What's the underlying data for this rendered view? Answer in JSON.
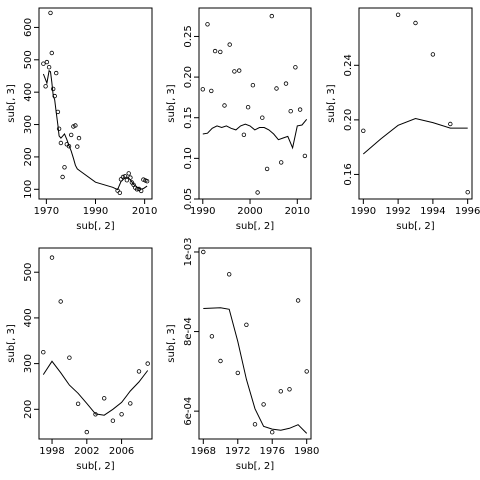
{
  "chart_data": [
    {
      "type": "scatter",
      "xlabel": "sub[, 2]",
      "ylabel": "sub[, 3]",
      "xlim": [
        1967,
        2013
      ],
      "ylim": [
        70,
        660
      ],
      "xticks": [
        1970,
        1990,
        2010
      ],
      "yticks": [
        100,
        200,
        300,
        400,
        500,
        600
      ],
      "y_tick_labels_rotated": true,
      "points": [
        {
          "x": 1968.8,
          "y": 488
        },
        {
          "x": 1969.7,
          "y": 418
        },
        {
          "x": 1970.2,
          "y": 493
        },
        {
          "x": 1971.1,
          "y": 477
        },
        {
          "x": 1971.7,
          "y": 645
        },
        {
          "x": 1972.2,
          "y": 521
        },
        {
          "x": 1972.8,
          "y": 410
        },
        {
          "x": 1973.4,
          "y": 388
        },
        {
          "x": 1974.0,
          "y": 459
        },
        {
          "x": 1974.7,
          "y": 339
        },
        {
          "x": 1975.2,
          "y": 287
        },
        {
          "x": 1975.9,
          "y": 243
        },
        {
          "x": 1976.6,
          "y": 138
        },
        {
          "x": 1977.4,
          "y": 168
        },
        {
          "x": 1978.3,
          "y": 239
        },
        {
          "x": 1979.2,
          "y": 233
        },
        {
          "x": 1980.1,
          "y": 268
        },
        {
          "x": 1981.0,
          "y": 294
        },
        {
          "x": 1981.8,
          "y": 297
        },
        {
          "x": 1982.6,
          "y": 232
        },
        {
          "x": 1983.3,
          "y": 258
        },
        {
          "x": 1999.0,
          "y": 96
        },
        {
          "x": 1999.9,
          "y": 89
        },
        {
          "x": 2000.4,
          "y": 131
        },
        {
          "x": 2001.2,
          "y": 138
        },
        {
          "x": 2002.0,
          "y": 140
        },
        {
          "x": 2002.8,
          "y": 128
        },
        {
          "x": 2003.5,
          "y": 149
        },
        {
          "x": 2004.2,
          "y": 136
        },
        {
          "x": 2004.8,
          "y": 121
        },
        {
          "x": 2005.5,
          "y": 114
        },
        {
          "x": 2006.2,
          "y": 105
        },
        {
          "x": 2006.9,
          "y": 100
        },
        {
          "x": 2007.7,
          "y": 101
        },
        {
          "x": 2008.6,
          "y": 95
        },
        {
          "x": 2009.5,
          "y": 130
        },
        {
          "x": 2010.3,
          "y": 127
        },
        {
          "x": 2011.0,
          "y": 125
        }
      ],
      "line": [
        {
          "x": 1968.8,
          "y": 456
        },
        {
          "x": 1970.2,
          "y": 428
        },
        {
          "x": 1971.1,
          "y": 466
        },
        {
          "x": 1971.7,
          "y": 463
        },
        {
          "x": 1972.2,
          "y": 431
        },
        {
          "x": 1972.8,
          "y": 390
        },
        {
          "x": 1973.4,
          "y": 376
        },
        {
          "x": 1974.0,
          "y": 338
        },
        {
          "x": 1974.7,
          "y": 298
        },
        {
          "x": 1975.2,
          "y": 265
        },
        {
          "x": 1975.9,
          "y": 258
        },
        {
          "x": 1976.6,
          "y": 264
        },
        {
          "x": 1977.4,
          "y": 271
        },
        {
          "x": 1978.3,
          "y": 254
        },
        {
          "x": 1979.2,
          "y": 235
        },
        {
          "x": 1980.1,
          "y": 218
        },
        {
          "x": 1981.0,
          "y": 196
        },
        {
          "x": 1981.8,
          "y": 174
        },
        {
          "x": 1982.6,
          "y": 163
        },
        {
          "x": 1984.0,
          "y": 155
        },
        {
          "x": 1990.0,
          "y": 122
        },
        {
          "x": 1997.0,
          "y": 106
        },
        {
          "x": 1999.0,
          "y": 99
        },
        {
          "x": 2000.4,
          "y": 124
        },
        {
          "x": 2001.5,
          "y": 132
        },
        {
          "x": 2002.8,
          "y": 138
        },
        {
          "x": 2003.5,
          "y": 135
        },
        {
          "x": 2004.5,
          "y": 126
        },
        {
          "x": 2005.5,
          "y": 115
        },
        {
          "x": 2006.5,
          "y": 109
        },
        {
          "x": 2007.5,
          "y": 104
        },
        {
          "x": 2008.5,
          "y": 101
        },
        {
          "x": 2009.5,
          "y": 102
        },
        {
          "x": 2011.0,
          "y": 110
        }
      ]
    },
    {
      "type": "scatter",
      "xlabel": "sub[, 2]",
      "ylabel": "sub[, 3]",
      "xlim": [
        1989.2,
        2012.9
      ],
      "ylim": [
        0.05,
        0.285
      ],
      "xticks": [
        1990,
        2000,
        2010
      ],
      "yticks": [
        0.05,
        0.1,
        0.15,
        0.2,
        0.25
      ],
      "ytick_labels": [
        "0.05",
        "0.10",
        "0.15",
        "0.20",
        "0.25"
      ],
      "y_tick_labels_rotated": true,
      "points": [
        {
          "x": 1990.0,
          "y": 0.185
        },
        {
          "x": 1991.0,
          "y": 0.265
        },
        {
          "x": 1991.8,
          "y": 0.183
        },
        {
          "x": 1992.6,
          "y": 0.232
        },
        {
          "x": 1993.7,
          "y": 0.231
        },
        {
          "x": 1994.6,
          "y": 0.165
        },
        {
          "x": 1995.7,
          "y": 0.24
        },
        {
          "x": 1996.7,
          "y": 0.207
        },
        {
          "x": 1997.7,
          "y": 0.208
        },
        {
          "x": 1998.7,
          "y": 0.129
        },
        {
          "x": 1999.6,
          "y": 0.163
        },
        {
          "x": 2000.6,
          "y": 0.19
        },
        {
          "x": 2001.6,
          "y": 0.058
        },
        {
          "x": 2002.6,
          "y": 0.15
        },
        {
          "x": 2003.6,
          "y": 0.087
        },
        {
          "x": 2004.6,
          "y": 0.275
        },
        {
          "x": 2005.6,
          "y": 0.186
        },
        {
          "x": 2006.6,
          "y": 0.095
        },
        {
          "x": 2007.6,
          "y": 0.192
        },
        {
          "x": 2008.6,
          "y": 0.158
        },
        {
          "x": 2009.6,
          "y": 0.212
        },
        {
          "x": 2010.6,
          "y": 0.16
        },
        {
          "x": 2011.6,
          "y": 0.103
        }
      ],
      "line": [
        {
          "x": 1990.0,
          "y": 0.13
        },
        {
          "x": 1991.0,
          "y": 0.131
        },
        {
          "x": 1992.0,
          "y": 0.137
        },
        {
          "x": 1993.0,
          "y": 0.14
        },
        {
          "x": 1994.0,
          "y": 0.138
        },
        {
          "x": 1995.0,
          "y": 0.14
        },
        {
          "x": 1996.0,
          "y": 0.137
        },
        {
          "x": 1997.0,
          "y": 0.135
        },
        {
          "x": 1998.0,
          "y": 0.14
        },
        {
          "x": 1999.0,
          "y": 0.142
        },
        {
          "x": 2000.0,
          "y": 0.14
        },
        {
          "x": 2001.0,
          "y": 0.135
        },
        {
          "x": 2002.0,
          "y": 0.138
        },
        {
          "x": 2003.0,
          "y": 0.138
        },
        {
          "x": 2004.0,
          "y": 0.135
        },
        {
          "x": 2005.0,
          "y": 0.13
        },
        {
          "x": 2006.0,
          "y": 0.123
        },
        {
          "x": 2007.0,
          "y": 0.125
        },
        {
          "x": 2008.0,
          "y": 0.127
        },
        {
          "x": 2009.0,
          "y": 0.113
        },
        {
          "x": 2010.0,
          "y": 0.14
        },
        {
          "x": 2011.0,
          "y": 0.141
        },
        {
          "x": 2012.0,
          "y": 0.148
        }
      ]
    },
    {
      "type": "scatter",
      "xlabel": "sub[, 2]",
      "ylabel": "sub[, 3]",
      "xlim": [
        1989.75,
        1996.25
      ],
      "ylim": [
        0.142,
        0.282
      ],
      "xticks": [
        1990,
        1992,
        1994,
        1996
      ],
      "yticks": [
        0.16,
        0.2,
        0.24
      ],
      "ytick_labels": [
        "0.16",
        "0.20",
        "0.24"
      ],
      "y_tick_labels_rotated": true,
      "points": [
        {
          "x": 1990.0,
          "y": 0.192
        },
        {
          "x": 1992.0,
          "y": 0.277
        },
        {
          "x": 1993.0,
          "y": 0.271
        },
        {
          "x": 1994.0,
          "y": 0.248
        },
        {
          "x": 1995.0,
          "y": 0.197
        },
        {
          "x": 1996.0,
          "y": 0.147
        }
      ],
      "line": [
        {
          "x": 1990.0,
          "y": 0.175
        },
        {
          "x": 1991.0,
          "y": 0.186
        },
        {
          "x": 1992.0,
          "y": 0.196
        },
        {
          "x": 1993.0,
          "y": 0.201
        },
        {
          "x": 1994.0,
          "y": 0.198
        },
        {
          "x": 1995.0,
          "y": 0.194
        },
        {
          "x": 1996.0,
          "y": 0.194
        }
      ]
    },
    {
      "type": "scatter",
      "xlabel": "sub[, 2]",
      "ylabel": "sub[, 3]",
      "xlim": [
        1996.5,
        2009.5
      ],
      "ylim": [
        135,
        553
      ],
      "xticks": [
        1998,
        2002,
        2006
      ],
      "yticks": [
        200,
        300,
        400,
        500
      ],
      "y_tick_labels_rotated": true,
      "points": [
        {
          "x": 1997.0,
          "y": 325
        },
        {
          "x": 1998.0,
          "y": 532
        },
        {
          "x": 1999.0,
          "y": 436
        },
        {
          "x": 2000.0,
          "y": 313
        },
        {
          "x": 2001.0,
          "y": 212
        },
        {
          "x": 2002.0,
          "y": 150
        },
        {
          "x": 2003.0,
          "y": 189
        },
        {
          "x": 2004.0,
          "y": 224
        },
        {
          "x": 2005.0,
          "y": 175
        },
        {
          "x": 2006.0,
          "y": 189
        },
        {
          "x": 2007.0,
          "y": 213
        },
        {
          "x": 2008.0,
          "y": 283
        },
        {
          "x": 2009.0,
          "y": 300
        }
      ],
      "line": [
        {
          "x": 1997.0,
          "y": 276
        },
        {
          "x": 1998.0,
          "y": 305
        },
        {
          "x": 1999.0,
          "y": 280
        },
        {
          "x": 2000.0,
          "y": 253
        },
        {
          "x": 2001.0,
          "y": 235
        },
        {
          "x": 2002.0,
          "y": 213
        },
        {
          "x": 2003.0,
          "y": 190
        },
        {
          "x": 2004.0,
          "y": 187
        },
        {
          "x": 2005.0,
          "y": 200
        },
        {
          "x": 2006.0,
          "y": 215
        },
        {
          "x": 2007.0,
          "y": 240
        },
        {
          "x": 2008.0,
          "y": 260
        },
        {
          "x": 2009.0,
          "y": 285
        }
      ]
    },
    {
      "type": "scatter",
      "xlabel": "sub[, 2]",
      "ylabel": "sub[, 3]",
      "xlim": [
        1967.5,
        1980.5
      ],
      "ylim": [
        0.00053,
        0.00101
      ],
      "xticks": [
        1968,
        1972,
        1976,
        1980
      ],
      "yticks": [
        0.0006,
        0.0008,
        0.001
      ],
      "ytick_labels": [
        "6e-04",
        "8e-04",
        "1e-03"
      ],
      "y_tick_labels_rotated": true,
      "points": [
        {
          "x": 1968.0,
          "y": 0.001
        },
        {
          "x": 1969.0,
          "y": 0.000788
        },
        {
          "x": 1970.0,
          "y": 0.000726
        },
        {
          "x": 1971.0,
          "y": 0.000944
        },
        {
          "x": 1972.0,
          "y": 0.000696
        },
        {
          "x": 1973.0,
          "y": 0.000817
        },
        {
          "x": 1974.0,
          "y": 0.000567
        },
        {
          "x": 1975.0,
          "y": 0.000617
        },
        {
          "x": 1976.0,
          "y": 0.000547
        },
        {
          "x": 1977.0,
          "y": 0.00065
        },
        {
          "x": 1978.0,
          "y": 0.000655
        },
        {
          "x": 1979.0,
          "y": 0.000878
        },
        {
          "x": 1980.0,
          "y": 0.0007
        }
      ],
      "line": [
        {
          "x": 1968.0,
          "y": 0.000858
        },
        {
          "x": 1969.0,
          "y": 0.000859
        },
        {
          "x": 1970.0,
          "y": 0.00086
        },
        {
          "x": 1971.0,
          "y": 0.000856
        },
        {
          "x": 1972.0,
          "y": 0.000775
        },
        {
          "x": 1973.0,
          "y": 0.00068
        },
        {
          "x": 1974.0,
          "y": 0.000606
        },
        {
          "x": 1975.0,
          "y": 0.000562
        },
        {
          "x": 1976.0,
          "y": 0.000555
        },
        {
          "x": 1977.0,
          "y": 0.000552
        },
        {
          "x": 1978.0,
          "y": 0.000557
        },
        {
          "x": 1979.0,
          "y": 0.000566
        },
        {
          "x": 1980.0,
          "y": 0.000544
        }
      ]
    }
  ]
}
